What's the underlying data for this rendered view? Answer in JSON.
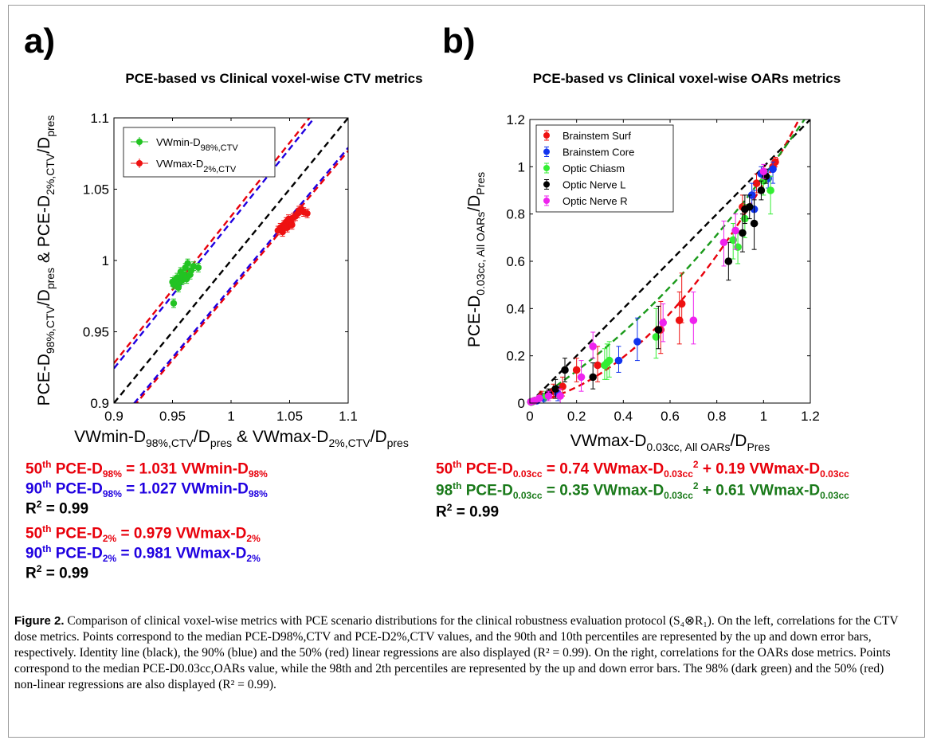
{
  "panels": {
    "a_label": "a)",
    "b_label": "b)"
  },
  "equations": {
    "a_eq1": [
      "50",
      "th",
      " PCE-D",
      "98%",
      " = 1.031 VWmin-D",
      "98%"
    ],
    "a_eq2": [
      "90",
      "th",
      " PCE-D",
      "98%",
      " = 1.027 VWmin-D",
      "98%"
    ],
    "a_r2_1": [
      "R",
      "2",
      " = 0.99"
    ],
    "a_eq3": [
      "50",
      "th",
      " PCE-D",
      "2%",
      " = 0.979 VWmax-D",
      "2%"
    ],
    "a_eq4": [
      "90",
      "th",
      " PCE-D",
      "2%",
      " = 0.981 VWmax-D",
      "2%"
    ],
    "a_r2_2": [
      "R",
      "2",
      " = 0.99"
    ],
    "b_eq1": [
      "50",
      "th",
      " PCE-D",
      "0.03cc",
      " = 0.74 VWmax-D",
      "0.03cc",
      "2",
      " + 0.19 VWmax-D",
      "0.03cc"
    ],
    "b_eq2": [
      "98",
      "th",
      " PCE-D",
      "0.03cc",
      " = 0.35 VWmax-D",
      "0.03cc",
      "2",
      " + 0.61 VWmax-D",
      "0.03cc"
    ],
    "b_r2": [
      "R",
      "2",
      " = 0.99"
    ]
  },
  "caption": {
    "label": "Figure 2.",
    "text": " Comparison of clinical voxel-wise metrics with PCE scenario distributions for the clinical robustness evaluation protocol (S₄⊗R₁). On the left, correlations for the CTV dose metrics. Points correspond to the median PCE-D98%,CTV and PCE-D2%,CTV values, and the 90th and 10th percentiles are represented by the up and down error bars, respectively. Identity line (black), the 90% (blue) and the 50% (red) linear regressions are also displayed (R² = 0.99). On the right, correlations for the OARs dose metrics. Points correspond to the median PCE-D0.03cc,OARs value, while the 98th and 2th percentiles are represented by the up and down error bars. The 98% (dark green) and the 50% (red) non-linear regressions are also displayed (R² = 0.99)."
  },
  "colors": {
    "red": "#e8000b",
    "blue": "#1f00e0",
    "green": "#1a7a1a",
    "marker_green": "#22c322",
    "marker_red": "#ee1111",
    "marker_blue": "#1133ee",
    "marker_lime": "#33ee33",
    "marker_black": "#000000",
    "marker_magenta": "#ee22ee"
  },
  "chart_data": [
    {
      "type": "scatter",
      "title": "PCE-based vs Clinical voxel-wise CTV metrics",
      "xlabel": [
        "VWmin-D",
        "98%,CTV",
        "/D",
        "pres",
        " & VWmax-D",
        "2%,CTV",
        "/D",
        "pres"
      ],
      "ylabel": [
        "PCE-D",
        "98%,CTV",
        "/D",
        "pres",
        " & PCE-D",
        "2%,CTV",
        "/D",
        "pres"
      ],
      "xlim": [
        0.9,
        1.1
      ],
      "ylim": [
        0.9,
        1.1
      ],
      "xticks": [
        "0.9",
        "0.95",
        "1",
        "1.05",
        "1.1"
      ],
      "yticks": [
        "0.9",
        "0.95",
        "1",
        "1.05",
        "1.1"
      ],
      "legend_position": "top-left",
      "series": [
        {
          "name": [
            "VWmin-D",
            "98%,CTV"
          ],
          "color": "#22c322",
          "x": [
            0.95,
            0.951,
            0.952,
            0.953,
            0.954,
            0.955,
            0.956,
            0.957,
            0.958,
            0.958,
            0.959,
            0.96,
            0.961,
            0.962,
            0.963,
            0.965,
            0.966,
            0.968,
            0.972,
            0.951
          ],
          "y": [
            0.985,
            0.983,
            0.986,
            0.984,
            0.988,
            0.981,
            0.985,
            0.992,
            0.986,
            0.989,
            0.987,
            0.99,
            0.995,
            0.987,
            0.998,
            0.99,
            0.993,
            0.996,
            0.995,
            0.97
          ],
          "err_up": 0.003,
          "err_down": 0.003
        },
        {
          "name": [
            "VWmax-D",
            "2%,CTV"
          ],
          "color": "#ee1111",
          "x": [
            1.04,
            1.042,
            1.044,
            1.045,
            1.046,
            1.047,
            1.048,
            1.049,
            1.05,
            1.051,
            1.052,
            1.053,
            1.055,
            1.057,
            1.058,
            1.06,
            1.062,
            1.065
          ],
          "y": [
            1.021,
            1.023,
            1.02,
            1.025,
            1.024,
            1.027,
            1.023,
            1.029,
            1.026,
            1.028,
            1.025,
            1.03,
            1.031,
            1.033,
            1.035,
            1.036,
            1.034,
            1.033
          ],
          "err_up": 0.003,
          "err_down": 0.003
        }
      ],
      "lines": [
        {
          "name": "identity",
          "color": "#000000",
          "slope": 1.0
        },
        {
          "name": "50th D98",
          "color": "#e8000b",
          "slope": 1.031
        },
        {
          "name": "90th D98",
          "color": "#1f00e0",
          "slope": 1.027
        },
        {
          "name": "50th D2",
          "color": "#e8000b",
          "slope": 0.979
        },
        {
          "name": "90th D2",
          "color": "#1f00e0",
          "slope": 0.981
        }
      ]
    },
    {
      "type": "scatter",
      "title": "PCE-based vs Clinical voxel-wise OARs metrics",
      "xlabel": [
        "VWmax-D",
        "0.03cc, All OARs",
        "/D",
        "Pres"
      ],
      "ylabel": [
        "PCE-D",
        "0.03cc, All OARs",
        "/D",
        "Pres"
      ],
      "xlim": [
        0,
        1.2
      ],
      "ylim": [
        0,
        1.2
      ],
      "xticks": [
        "0",
        "0.2",
        "0.4",
        "0.6",
        "0.8",
        "1",
        "1.2"
      ],
      "yticks": [
        "0",
        "0.2",
        "0.4",
        "0.6",
        "0.8",
        "1",
        "1.2"
      ],
      "legend_position": "top-left",
      "series": [
        {
          "name": "Brainstem Surf",
          "color": "#ee1111",
          "x": [
            0.005,
            0.02,
            0.05,
            0.1,
            0.14,
            0.2,
            0.29,
            0.56,
            0.64,
            0.65,
            0.91,
            0.97,
            1.0,
            1.04,
            1.05
          ],
          "y": [
            0.005,
            0.01,
            0.03,
            0.05,
            0.07,
            0.14,
            0.16,
            0.31,
            0.35,
            0.42,
            0.83,
            0.93,
            0.97,
            1.0,
            1.02
          ],
          "err_up": [
            0.01,
            0.01,
            0.02,
            0.03,
            0.04,
            0.05,
            0.08,
            0.12,
            0.12,
            0.13,
            0.05,
            0.04,
            0.03,
            0.02,
            0.02
          ],
          "err_down": [
            0.005,
            0.01,
            0.02,
            0.03,
            0.04,
            0.05,
            0.07,
            0.1,
            0.1,
            0.08,
            0.05,
            0.04,
            0.03,
            0.02,
            0.02
          ]
        },
        {
          "name": "Brainstem Core",
          "color": "#1133ee",
          "x": [
            0.005,
            0.03,
            0.06,
            0.12,
            0.38,
            0.46,
            0.95,
            0.96,
            0.99,
            1.02,
            1.04
          ],
          "y": [
            0.005,
            0.01,
            0.02,
            0.04,
            0.18,
            0.26,
            0.88,
            0.82,
            0.97,
            0.95,
            0.99
          ],
          "err_up": [
            0.01,
            0.01,
            0.02,
            0.03,
            0.06,
            0.1,
            0.05,
            0.08,
            0.03,
            0.04,
            0.03
          ],
          "err_down": [
            0.005,
            0.01,
            0.02,
            0.03,
            0.05,
            0.08,
            0.05,
            0.07,
            0.03,
            0.04,
            0.06
          ]
        },
        {
          "name": "Optic Chiasm",
          "color": "#33ee33",
          "x": [
            0.01,
            0.04,
            0.07,
            0.32,
            0.33,
            0.34,
            0.54,
            0.87,
            0.89,
            0.92,
            1.0,
            1.03
          ],
          "y": [
            0.005,
            0.02,
            0.03,
            0.16,
            0.17,
            0.18,
            0.28,
            0.69,
            0.66,
            0.78,
            0.94,
            0.9
          ],
          "err_up": [
            0.01,
            0.01,
            0.02,
            0.07,
            0.08,
            0.08,
            0.12,
            0.07,
            0.06,
            0.06,
            0.04,
            0.06
          ],
          "err_down": [
            0.005,
            0.01,
            0.02,
            0.06,
            0.07,
            0.07,
            0.09,
            0.08,
            0.07,
            0.08,
            0.06,
            0.1
          ]
        },
        {
          "name": "Optic Nerve L",
          "color": "#000000",
          "x": [
            0.005,
            0.02,
            0.08,
            0.11,
            0.15,
            0.27,
            0.55,
            0.85,
            0.91,
            0.92,
            0.94,
            0.96,
            0.99,
            1.01
          ],
          "y": [
            0.005,
            0.01,
            0.04,
            0.06,
            0.14,
            0.11,
            0.31,
            0.6,
            0.72,
            0.82,
            0.83,
            0.76,
            0.9,
            0.96
          ],
          "err_up": [
            0.01,
            0.01,
            0.02,
            0.04,
            0.05,
            0.06,
            0.1,
            0.08,
            0.08,
            0.06,
            0.05,
            0.1,
            0.04,
            0.03
          ],
          "err_down": [
            0.005,
            0.01,
            0.02,
            0.04,
            0.05,
            0.05,
            0.08,
            0.08,
            0.08,
            0.06,
            0.05,
            0.11,
            0.04,
            0.03
          ]
        },
        {
          "name": "Optic Nerve R",
          "color": "#ee22ee",
          "x": [
            0.005,
            0.02,
            0.04,
            0.08,
            0.13,
            0.22,
            0.27,
            0.57,
            0.7,
            0.83,
            0.88,
            1.0
          ],
          "y": [
            0.005,
            0.01,
            0.02,
            0.03,
            0.03,
            0.11,
            0.24,
            0.34,
            0.35,
            0.68,
            0.73,
            0.98
          ],
          "err_up": [
            0.01,
            0.01,
            0.01,
            0.02,
            0.03,
            0.07,
            0.06,
            0.08,
            0.12,
            0.09,
            0.07,
            0.03
          ],
          "err_down": [
            0.005,
            0.01,
            0.01,
            0.02,
            0.03,
            0.06,
            0.05,
            0.08,
            0.1,
            0.1,
            0.08,
            0.03
          ]
        }
      ],
      "lines": [
        {
          "name": "identity",
          "color": "#000000",
          "a": 0,
          "b": 1.0
        },
        {
          "name": "50th fit",
          "color": "#e8000b",
          "a": 0.74,
          "b": 0.19
        },
        {
          "name": "98th fit",
          "color": "#1a9a1a",
          "a": 0.35,
          "b": 0.61
        }
      ]
    }
  ]
}
